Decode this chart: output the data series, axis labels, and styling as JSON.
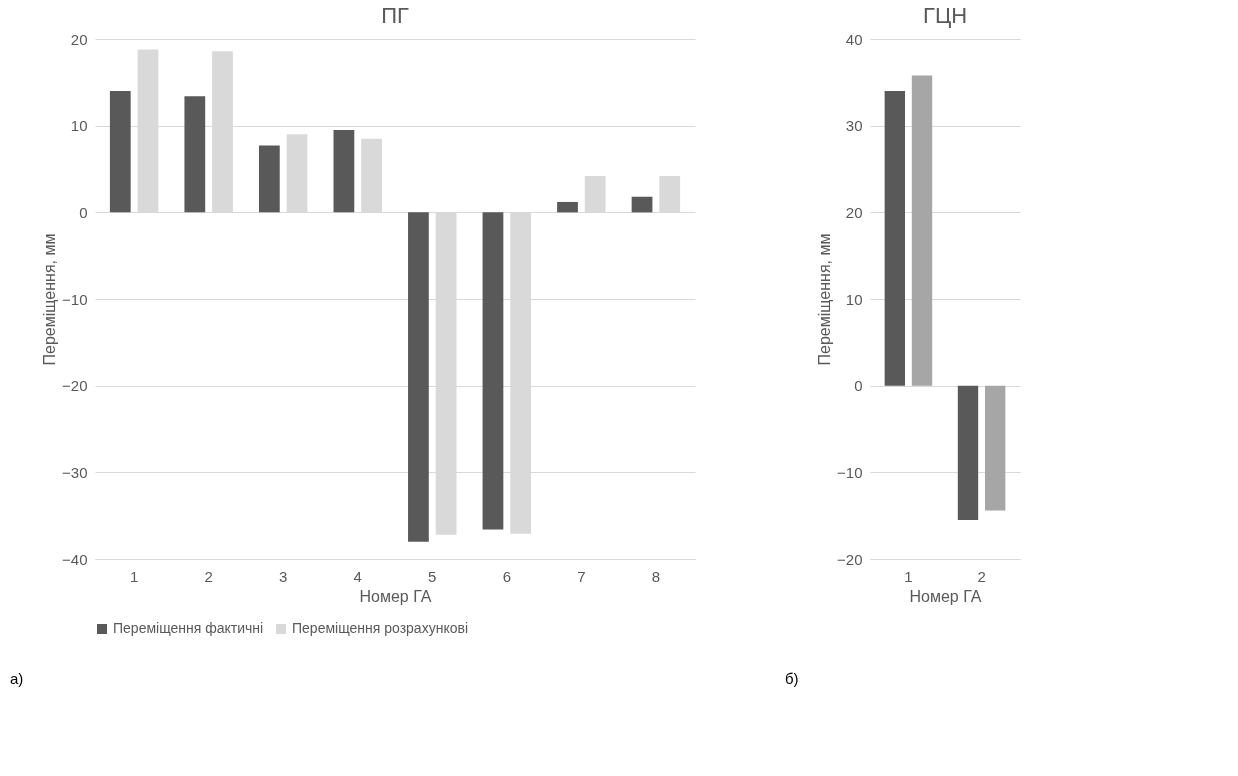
{
  "chart_data": [
    {
      "type": "bar",
      "title": "ПГ",
      "xlabel": "Номер ГА",
      "ylabel": "Переміщення, мм",
      "categories": [
        "1",
        "2",
        "3",
        "4",
        "5",
        "6",
        "7",
        "8"
      ],
      "series": [
        {
          "name": "Переміщення фактичні",
          "color": "#595959",
          "values": [
            14.0,
            13.4,
            7.7,
            9.5,
            -38.0,
            -36.6,
            1.2,
            1.8
          ]
        },
        {
          "name": "Переміщення розрахункові",
          "color": "#d9d9d9",
          "values": [
            18.8,
            18.6,
            9.0,
            8.5,
            -37.2,
            -37.1,
            4.2,
            4.2
          ]
        }
      ],
      "ylim": [
        -40,
        20
      ],
      "yticks": [
        -40,
        -30,
        -20,
        -10,
        0,
        10,
        20
      ],
      "grid": "y",
      "legend": "bottom",
      "annotations": [
        "а)"
      ]
    },
    {
      "type": "bar",
      "title": "ГЦН",
      "xlabel": "Номер ГА",
      "ylabel": "Переміщення, мм",
      "categories": [
        "1",
        "2"
      ],
      "series": [
        {
          "color": "#595959",
          "values": [
            34.0,
            -15.5
          ]
        },
        {
          "color": "#a6a6a6",
          "values": [
            35.8,
            -14.4
          ]
        }
      ],
      "ylim": [
        -20,
        40
      ],
      "yticks": [
        -20,
        -10,
        0,
        10,
        20,
        30,
        40
      ],
      "grid": "y",
      "annotations": [
        "б)"
      ]
    }
  ]
}
